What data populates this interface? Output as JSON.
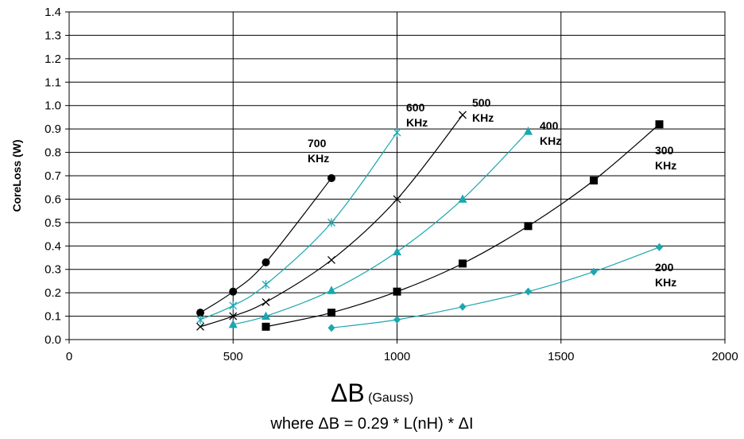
{
  "chart_data": {
    "type": "line",
    "xlabel_main": "ΔB",
    "xlabel_unit": "(Gauss)",
    "ylabel": "CoreLoss (W)",
    "note": "where ΔB = 0.29 * L(nH) * ΔI",
    "xlim": [
      0,
      2000
    ],
    "ylim": [
      0,
      1.4
    ],
    "xticks": [
      "0",
      "500",
      "1000",
      "1500",
      "2000"
    ],
    "yticks": [
      "0.0",
      "0.1",
      "0.2",
      "0.3",
      "0.4",
      "0.5",
      "0.6",
      "0.7",
      "0.8",
      "0.9",
      "1.0",
      "1.1",
      "1.2",
      "1.3",
      "1.4"
    ],
    "grid": "major",
    "legend": "none",
    "series": [
      {
        "name": "700 KHz",
        "label_lines": [
          "700",
          "KHz"
        ],
        "color": "#000000",
        "marker": "circle",
        "x": [
          400,
          500,
          600,
          800
        ],
        "y": [
          0.115,
          0.205,
          0.33,
          0.69
        ]
      },
      {
        "name": "600 KHz",
        "label_lines": [
          "600",
          "KHz"
        ],
        "color": "#1aa7b0",
        "marker": "star",
        "x": [
          400,
          500,
          600,
          800,
          1000
        ],
        "y": [
          0.085,
          0.145,
          0.235,
          0.5,
          0.885
        ]
      },
      {
        "name": "500 KHz",
        "label_lines": [
          "500",
          "KHz"
        ],
        "color": "#000000",
        "marker": "x",
        "x": [
          400,
          500,
          600,
          800,
          1000,
          1200
        ],
        "y": [
          0.055,
          0.1,
          0.16,
          0.34,
          0.6,
          0.96
        ]
      },
      {
        "name": "400 KHz",
        "label_lines": [
          "400",
          "KHz"
        ],
        "color": "#1aa7b0",
        "marker": "triangle",
        "x": [
          500,
          600,
          800,
          1000,
          1200,
          1400
        ],
        "y": [
          0.065,
          0.1,
          0.21,
          0.375,
          0.6,
          0.89
        ]
      },
      {
        "name": "300 KHz",
        "label_lines": [
          "300",
          "KHz"
        ],
        "color": "#000000",
        "marker": "square",
        "x": [
          600,
          800,
          1000,
          1200,
          1400,
          1600,
          1800
        ],
        "y": [
          0.055,
          0.115,
          0.205,
          0.325,
          0.485,
          0.68,
          0.92
        ]
      },
      {
        "name": "200 KHz",
        "label_lines": [
          "200",
          "KHz"
        ],
        "color": "#1aa7b0",
        "marker": "diamond",
        "x": [
          800,
          1000,
          1200,
          1400,
          1600,
          1800
        ],
        "y": [
          0.05,
          0.085,
          0.14,
          0.205,
          0.29,
          0.395
        ]
      }
    ]
  }
}
